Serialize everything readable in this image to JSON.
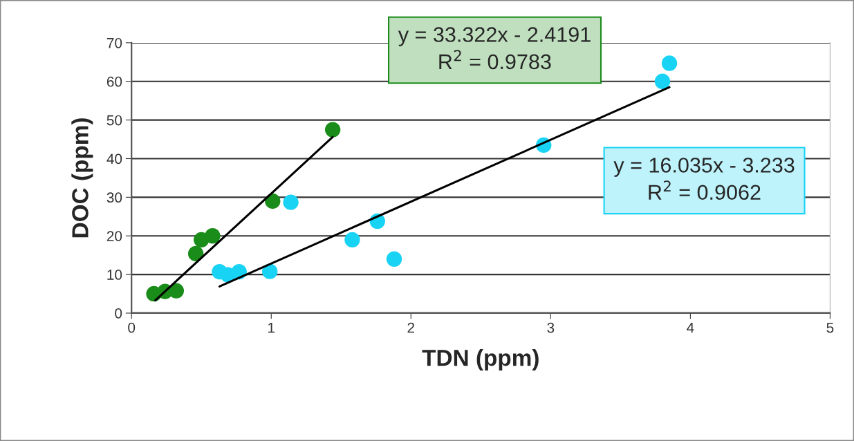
{
  "chart_data": {
    "type": "scatter",
    "xlabel": "TDN (ppm)",
    "ylabel": "DOC (ppm)",
    "xlim": [
      0,
      5
    ],
    "xticks": [
      0,
      1,
      2,
      3,
      4,
      5
    ],
    "ylim": [
      0,
      70
    ],
    "yticks": [
      0,
      10,
      20,
      30,
      40,
      50,
      60,
      70
    ],
    "grid": "y",
    "series": [
      {
        "marker": "circle",
        "color": "#1a8c1a",
        "x": [
          0.16,
          0.24,
          0.32,
          0.46,
          0.5,
          0.58,
          1.01,
          1.44
        ],
        "values": [
          5,
          5.6,
          5.8,
          15.4,
          19,
          20,
          29,
          47.5
        ]
      },
      {
        "marker": "circle",
        "color": "#19d3f5",
        "x": [
          0.63,
          0.69,
          0.77,
          0.99,
          1.14,
          1.58,
          1.76,
          1.88,
          2.95,
          3.8,
          3.85
        ],
        "values": [
          10.7,
          9.9,
          10.7,
          10.8,
          28.7,
          19,
          23.8,
          14,
          43.5,
          60,
          64.7
        ]
      },
      {
        "type": "line",
        "color": "#000000",
        "x": [
          0.17,
          1.44
        ],
        "values": [
          3.3,
          45.6
        ]
      },
      {
        "type": "line",
        "color": "#000000",
        "x": [
          0.63,
          3.85
        ],
        "values": [
          6.9,
          58.5
        ]
      }
    ],
    "annotations": [
      "y = 33.322x - 2.4191\nR$^{2}$ = 0.9783",
      "y = 16.035x - 3.233\nR$^{2}$ = 0.9062"
    ]
  }
}
